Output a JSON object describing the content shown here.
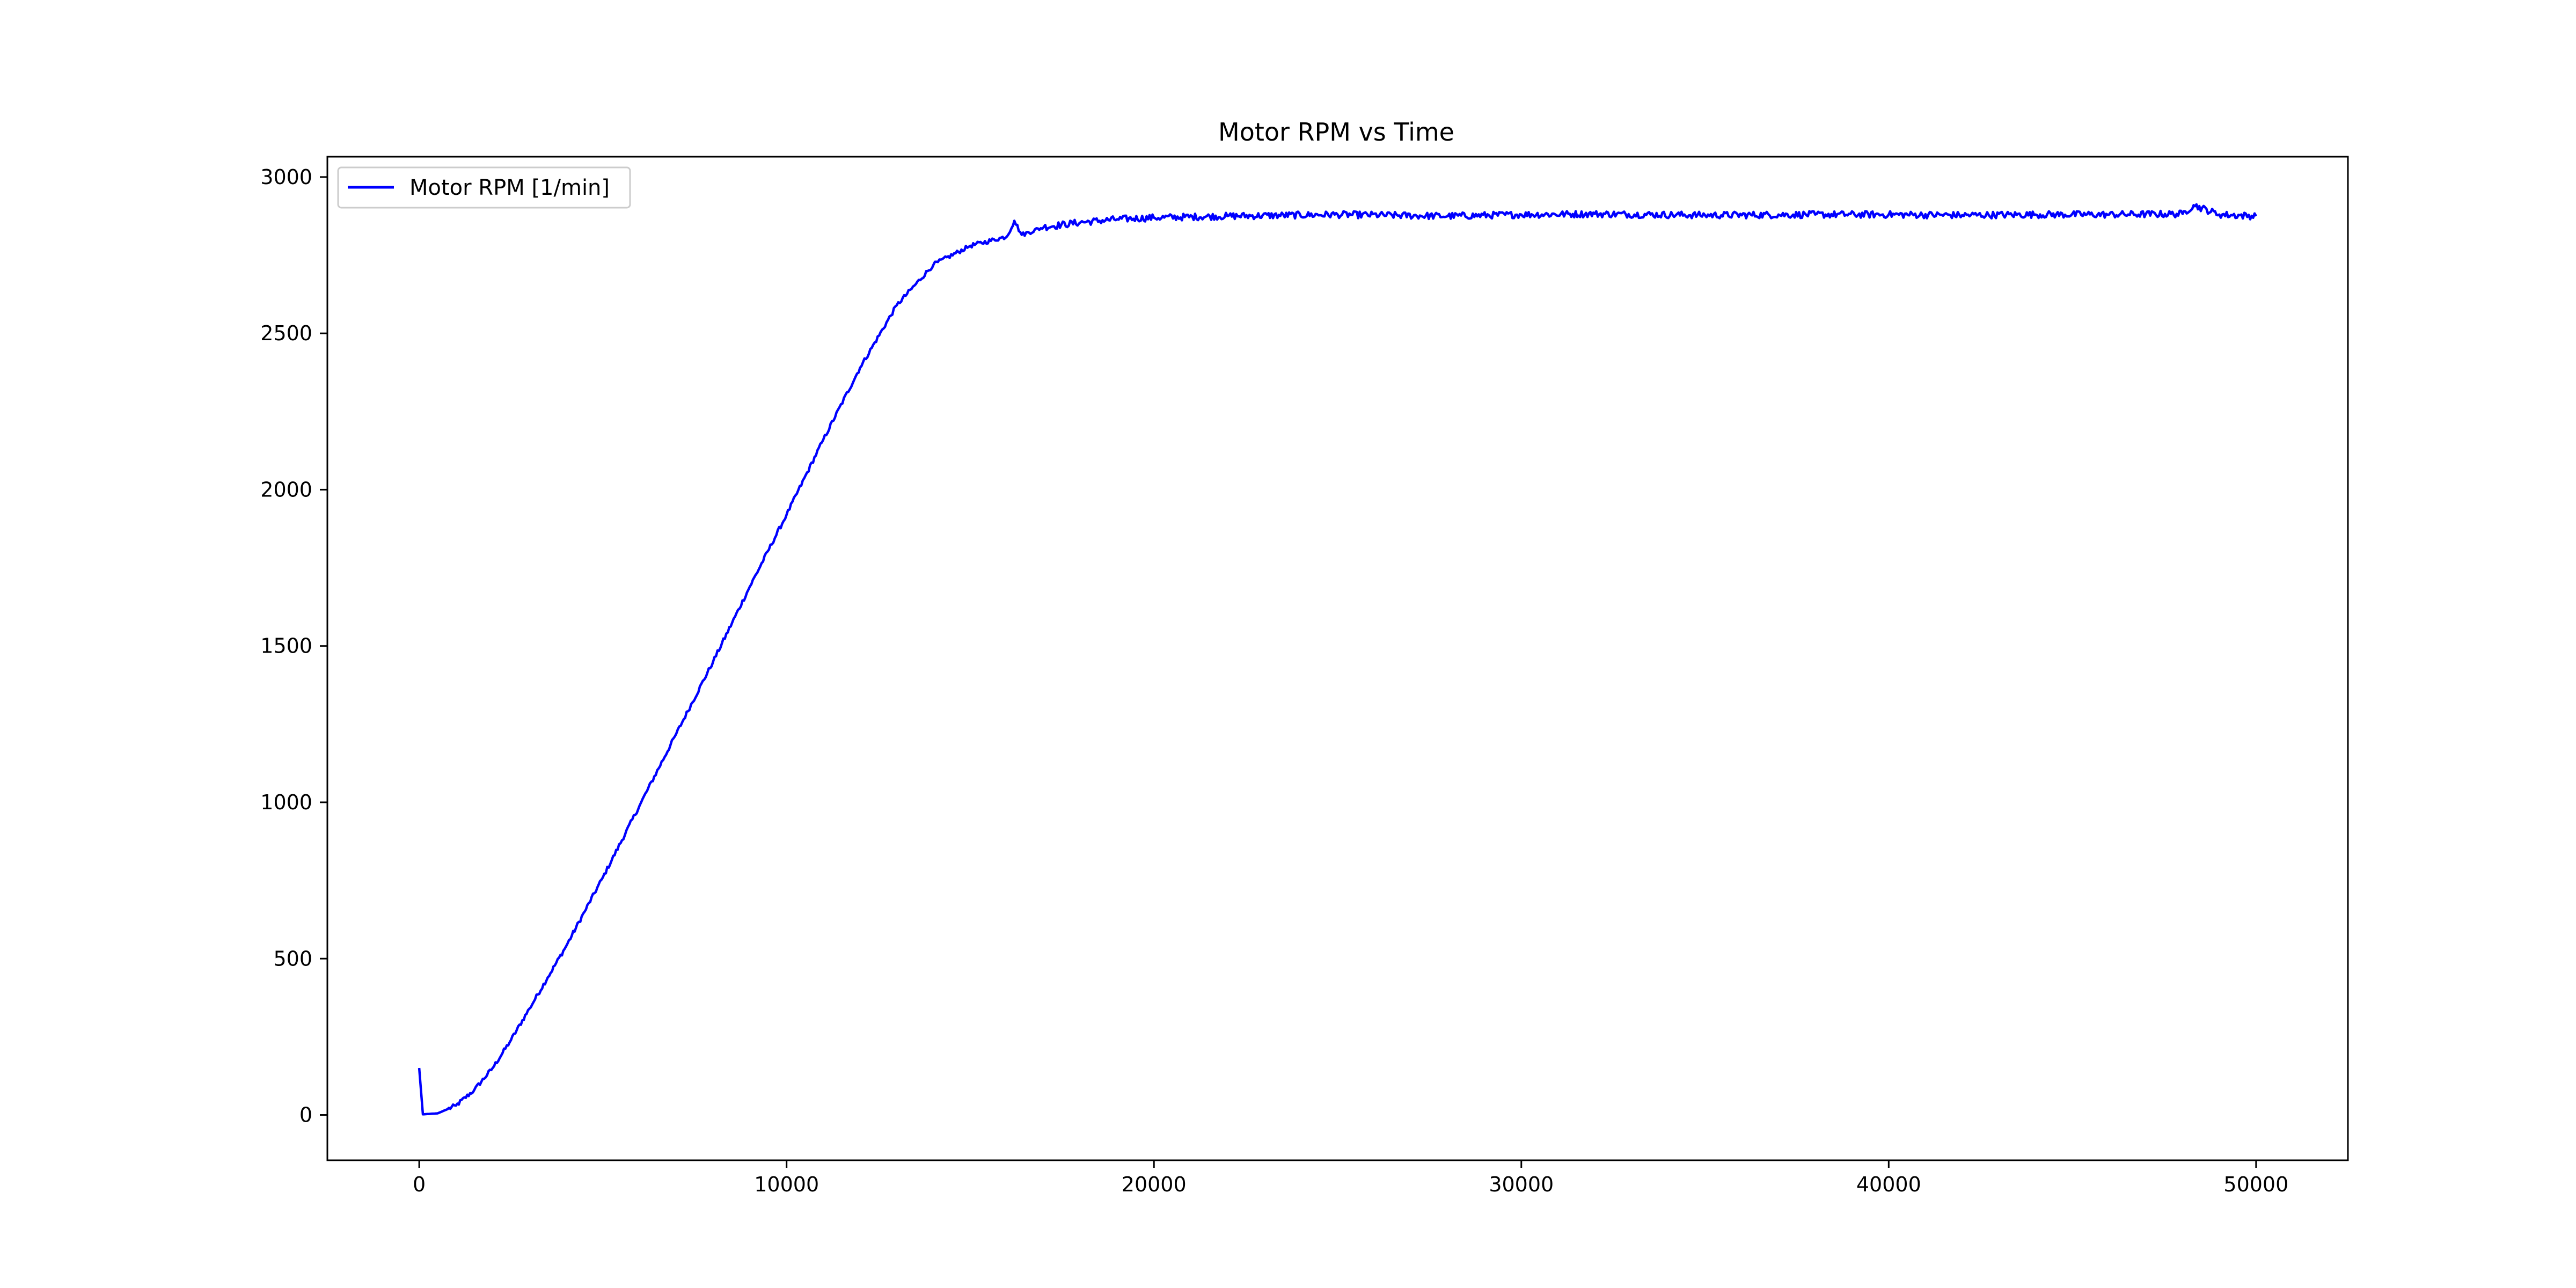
{
  "chart_data": {
    "type": "line",
    "title": "Motor RPM vs Time",
    "xlabel": "",
    "ylabel": "",
    "xlim": [
      -2500,
      52500
    ],
    "ylim": [
      -145,
      3065
    ],
    "xticks": [
      0,
      10000,
      20000,
      30000,
      40000,
      50000
    ],
    "yticks": [
      0,
      500,
      1000,
      1500,
      2000,
      2500,
      3000
    ],
    "grid": false,
    "legend": {
      "placement": "top-left",
      "entries": [
        "Motor RPM [1/min]"
      ]
    },
    "series": [
      {
        "name": "Motor RPM [1/min]",
        "color": "#0000ff",
        "x": [
          0,
          100,
          500,
          1000,
          1500,
          2000,
          2500,
          3000,
          3500,
          4000,
          4500,
          5000,
          6000,
          7000,
          8000,
          9000,
          10000,
          11000,
          12000,
          13000,
          14000,
          15000,
          16000,
          16200,
          16400,
          17000,
          18000,
          19000,
          20000,
          22000,
          25000,
          28000,
          30000,
          32000,
          35000,
          38000,
          40000,
          42000,
          44000,
          46000,
          48000,
          48300,
          49000,
          50000
        ],
        "values": [
          150,
          2,
          5,
          30,
          80,
          150,
          240,
          340,
          440,
          540,
          650,
          760,
          990,
          1220,
          1450,
          1690,
          1920,
          2160,
          2390,
          2590,
          2720,
          2780,
          2810,
          2860,
          2815,
          2840,
          2855,
          2865,
          2870,
          2875,
          2880,
          2875,
          2880,
          2882,
          2878,
          2880,
          2880,
          2878,
          2880,
          2880,
          2882,
          2910,
          2880,
          2875
        ]
      }
    ]
  }
}
